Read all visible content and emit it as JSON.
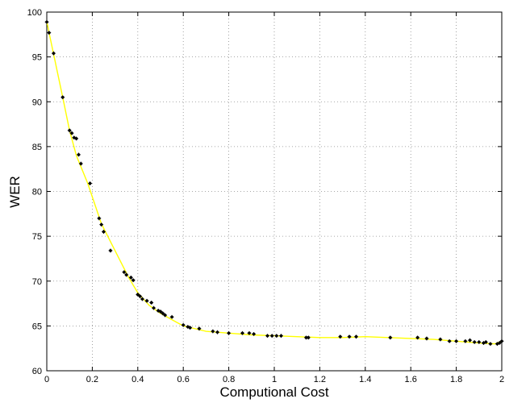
{
  "chart_data": {
    "type": "scatter",
    "xlabel": "Computional Cost",
    "ylabel": "WER",
    "xlim": [
      0,
      2
    ],
    "ylim": [
      60,
      100
    ],
    "xticks": [
      0,
      0.2,
      0.4,
      0.6,
      0.8,
      1,
      1.2,
      1.4,
      1.6,
      1.8,
      2
    ],
    "yticks": [
      60,
      65,
      70,
      75,
      80,
      85,
      90,
      95,
      100
    ],
    "xtick_labels": [
      "0",
      "0.2",
      "0.4",
      "0.6",
      "0.8",
      "1",
      "1.2",
      "1.4",
      "1.6",
      "1.8",
      "2"
    ],
    "ytick_labels": [
      "60",
      "65",
      "70",
      "75",
      "80",
      "85",
      "90",
      "95",
      "100"
    ],
    "grid": true,
    "colors": {
      "curve": "#ffff00",
      "points": "#000000",
      "grid": "#8c8c8c",
      "axes": "#000000"
    },
    "series": [
      {
        "type": "line",
        "x": [
          0.0,
          0.01,
          0.03,
          0.07,
          0.1,
          0.13,
          0.18,
          0.24,
          0.3,
          0.36,
          0.4,
          0.45,
          0.5,
          0.55,
          0.6,
          0.7,
          0.8,
          0.9,
          1.0,
          1.1,
          1.2,
          1.3,
          1.4,
          1.5,
          1.6,
          1.7,
          1.8,
          1.9,
          1.97,
          2.0
        ],
        "y": [
          99.0,
          97.7,
          95.3,
          90.5,
          86.8,
          84.0,
          80.9,
          76.4,
          73.4,
          70.4,
          68.7,
          67.3,
          66.4,
          65.7,
          65.0,
          64.4,
          64.2,
          64.0,
          63.9,
          63.8,
          63.7,
          63.7,
          63.8,
          63.7,
          63.6,
          63.5,
          63.3,
          63.1,
          63.0,
          63.3
        ]
      },
      {
        "type": "scatter",
        "x": [
          0.0,
          0.01,
          0.03,
          0.07,
          0.1,
          0.11,
          0.12,
          0.13,
          0.14,
          0.15,
          0.19,
          0.23,
          0.24,
          0.25,
          0.28,
          0.34,
          0.35,
          0.37,
          0.38,
          0.4,
          0.41,
          0.42,
          0.44,
          0.46,
          0.47,
          0.49,
          0.5,
          0.51,
          0.52,
          0.55,
          0.6,
          0.62,
          0.63,
          0.67,
          0.73,
          0.75,
          0.8,
          0.86,
          0.89,
          0.91,
          0.97,
          0.99,
          1.01,
          1.03,
          1.14,
          1.15,
          1.29,
          1.33,
          1.36,
          1.51,
          1.63,
          1.67,
          1.73,
          1.77,
          1.8,
          1.84,
          1.86,
          1.88,
          1.9,
          1.92,
          1.93,
          1.95,
          1.98,
          1.99,
          2.0
        ],
        "y": [
          98.9,
          97.7,
          95.4,
          90.5,
          86.8,
          86.5,
          86.0,
          85.9,
          84.1,
          83.1,
          80.9,
          77.0,
          76.3,
          75.5,
          73.4,
          71.0,
          70.7,
          70.4,
          70.1,
          68.5,
          68.3,
          68.0,
          67.8,
          67.6,
          67.0,
          66.7,
          66.6,
          66.4,
          66.2,
          66.0,
          65.1,
          64.9,
          64.8,
          64.7,
          64.4,
          64.3,
          64.2,
          64.2,
          64.2,
          64.1,
          63.9,
          63.9,
          63.9,
          63.9,
          63.7,
          63.7,
          63.8,
          63.8,
          63.8,
          63.7,
          63.7,
          63.6,
          63.5,
          63.3,
          63.3,
          63.3,
          63.4,
          63.2,
          63.2,
          63.1,
          63.2,
          63.0,
          63.0,
          63.1,
          63.3
        ]
      }
    ]
  }
}
